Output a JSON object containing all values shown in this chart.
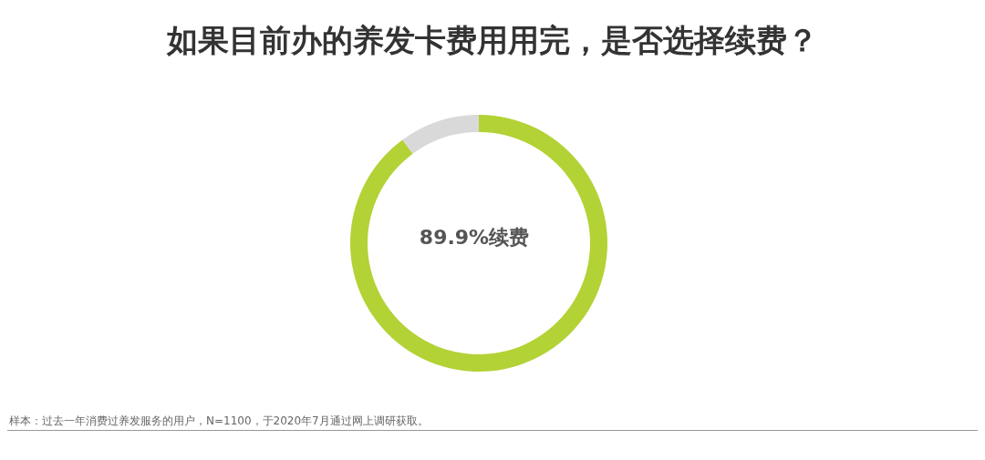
{
  "chart_data": {
    "type": "donut",
    "title": "如果目前办的养发卡费用用完，是否选择续费？",
    "categories": [
      null,
      null
    ],
    "values": [
      89.9,
      10.1
    ],
    "colors": [
      "#b3d235",
      "#d9d9d9"
    ],
    "annotations": [
      "89.9%续费",
      "样本：过去一年消费过养发服务的用户，N=1100，于2020年7月通过网上调研获取。"
    ],
    "legend": false
  }
}
